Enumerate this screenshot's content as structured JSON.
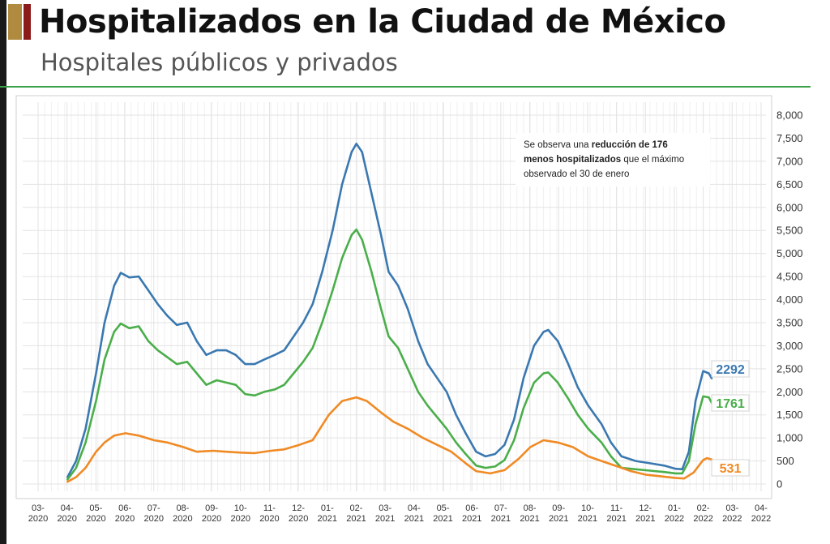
{
  "header": {
    "title": "Hospitalizados en la Ciudad de México",
    "subtitle": "Hospitales públicos y privados"
  },
  "annotation": {
    "line1_pre": "Se observa una ",
    "line1_bold": "reducción de 176",
    "line2_bold": "menos hospitalizados",
    "line2_post": " que el máximo",
    "line3": "observado el 30 de enero"
  },
  "chart_data": {
    "type": "line",
    "title": "",
    "xlabel": "",
    "ylabel": "",
    "ylim": [
      0,
      8000
    ],
    "yticks": [
      0,
      500,
      1000,
      1500,
      2000,
      2500,
      3000,
      3500,
      4000,
      4500,
      5000,
      5500,
      6000,
      6500,
      7000,
      7500,
      8000
    ],
    "ytick_labels": [
      "0",
      "500",
      "1,000",
      "1,500",
      "2,000",
      "2,500",
      "3,000",
      "3,500",
      "4,000",
      "4,500",
      "5,000",
      "5,500",
      "6,000",
      "6,500",
      "7,000",
      "7,500",
      "8,000"
    ],
    "x_axis": "date",
    "xlim": [
      "2020-03-01",
      "2022-04-01"
    ],
    "xtick_labels": [
      [
        "03-",
        "2020"
      ],
      [
        "04-",
        "2020"
      ],
      [
        "05-",
        "2020"
      ],
      [
        "06-",
        "2020"
      ],
      [
        "07-",
        "2020"
      ],
      [
        "08-",
        "2020"
      ],
      [
        "09-",
        "2020"
      ],
      [
        "10-",
        "2020"
      ],
      [
        "11-",
        "2020"
      ],
      [
        "12-",
        "2020"
      ],
      [
        "01-",
        "2021"
      ],
      [
        "02-",
        "2021"
      ],
      [
        "03-",
        "2021"
      ],
      [
        "04-",
        "2021"
      ],
      [
        "05-",
        "2021"
      ],
      [
        "06-",
        "2021"
      ],
      [
        "07-",
        "2021"
      ],
      [
        "08-",
        "2021"
      ],
      [
        "09-",
        "2021"
      ],
      [
        "10-",
        "2021"
      ],
      [
        "11-",
        "2021"
      ],
      [
        "12-",
        "2021"
      ],
      [
        "01-",
        "2022"
      ],
      [
        "02-",
        "2022"
      ],
      [
        "03-",
        "2022"
      ],
      [
        "04-",
        "2022"
      ]
    ],
    "grid": true,
    "y_axis_side": "right",
    "series": [
      {
        "color": "#3a78b0",
        "end_label": "2292",
        "points": [
          [
            "2020-04-01",
            150
          ],
          [
            "2020-04-10",
            500
          ],
          [
            "2020-04-20",
            1200
          ],
          [
            "2020-05-01",
            2400
          ],
          [
            "2020-05-10",
            3500
          ],
          [
            "2020-05-20",
            4300
          ],
          [
            "2020-05-27",
            4580
          ],
          [
            "2020-06-05",
            4480
          ],
          [
            "2020-06-15",
            4500
          ],
          [
            "2020-06-25",
            4200
          ],
          [
            "2020-07-05",
            3900
          ],
          [
            "2020-07-15",
            3650
          ],
          [
            "2020-07-25",
            3450
          ],
          [
            "2020-08-05",
            3500
          ],
          [
            "2020-08-15",
            3100
          ],
          [
            "2020-08-25",
            2800
          ],
          [
            "2020-09-05",
            2900
          ],
          [
            "2020-09-15",
            2900
          ],
          [
            "2020-09-25",
            2800
          ],
          [
            "2020-10-05",
            2600
          ],
          [
            "2020-10-15",
            2600
          ],
          [
            "2020-10-25",
            2700
          ],
          [
            "2020-11-05",
            2800
          ],
          [
            "2020-11-15",
            2900
          ],
          [
            "2020-11-25",
            3200
          ],
          [
            "2020-12-05",
            3500
          ],
          [
            "2020-12-15",
            3900
          ],
          [
            "2020-12-25",
            4600
          ],
          [
            "2021-01-05",
            5500
          ],
          [
            "2021-01-15",
            6500
          ],
          [
            "2021-01-25",
            7200
          ],
          [
            "2021-01-30",
            7380
          ],
          [
            "2021-02-05",
            7200
          ],
          [
            "2021-02-15",
            6300
          ],
          [
            "2021-02-25",
            5400
          ],
          [
            "2021-03-05",
            4600
          ],
          [
            "2021-03-15",
            4300
          ],
          [
            "2021-03-25",
            3800
          ],
          [
            "2021-04-05",
            3100
          ],
          [
            "2021-04-15",
            2600
          ],
          [
            "2021-04-25",
            2300
          ],
          [
            "2021-05-05",
            2000
          ],
          [
            "2021-05-15",
            1500
          ],
          [
            "2021-05-25",
            1100
          ],
          [
            "2021-06-05",
            700
          ],
          [
            "2021-06-15",
            600
          ],
          [
            "2021-06-25",
            650
          ],
          [
            "2021-07-05",
            850
          ],
          [
            "2021-07-15",
            1400
          ],
          [
            "2021-07-25",
            2300
          ],
          [
            "2021-08-05",
            3000
          ],
          [
            "2021-08-15",
            3300
          ],
          [
            "2021-08-20",
            3340
          ],
          [
            "2021-08-30",
            3100
          ],
          [
            "2021-09-10",
            2600
          ],
          [
            "2021-09-20",
            2100
          ],
          [
            "2021-10-01",
            1700
          ],
          [
            "2021-10-15",
            1300
          ],
          [
            "2021-10-25",
            900
          ],
          [
            "2021-11-05",
            600
          ],
          [
            "2021-11-20",
            500
          ],
          [
            "2021-12-05",
            450
          ],
          [
            "2021-12-20",
            400
          ],
          [
            "2022-01-01",
            330
          ],
          [
            "2022-01-08",
            320
          ],
          [
            "2022-01-15",
            700
          ],
          [
            "2022-01-22",
            1800
          ],
          [
            "2022-01-30",
            2450
          ],
          [
            "2022-02-05",
            2400
          ],
          [
            "2022-02-08",
            2292
          ]
        ]
      },
      {
        "color": "#4aae4a",
        "end_label": "1761",
        "points": [
          [
            "2020-04-01",
            100
          ],
          [
            "2020-04-10",
            350
          ],
          [
            "2020-04-20",
            900
          ],
          [
            "2020-05-01",
            1800
          ],
          [
            "2020-05-10",
            2700
          ],
          [
            "2020-05-20",
            3300
          ],
          [
            "2020-05-27",
            3480
          ],
          [
            "2020-06-05",
            3380
          ],
          [
            "2020-06-15",
            3420
          ],
          [
            "2020-06-25",
            3100
          ],
          [
            "2020-07-05",
            2900
          ],
          [
            "2020-07-15",
            2750
          ],
          [
            "2020-07-25",
            2600
          ],
          [
            "2020-08-05",
            2650
          ],
          [
            "2020-08-15",
            2400
          ],
          [
            "2020-08-25",
            2150
          ],
          [
            "2020-09-05",
            2250
          ],
          [
            "2020-09-15",
            2200
          ],
          [
            "2020-09-25",
            2150
          ],
          [
            "2020-10-05",
            1950
          ],
          [
            "2020-10-15",
            1920
          ],
          [
            "2020-10-25",
            2000
          ],
          [
            "2020-11-05",
            2050
          ],
          [
            "2020-11-15",
            2150
          ],
          [
            "2020-11-25",
            2400
          ],
          [
            "2020-12-05",
            2650
          ],
          [
            "2020-12-15",
            2950
          ],
          [
            "2020-12-25",
            3500
          ],
          [
            "2021-01-05",
            4200
          ],
          [
            "2021-01-15",
            4900
          ],
          [
            "2021-01-25",
            5400
          ],
          [
            "2021-01-30",
            5520
          ],
          [
            "2021-02-05",
            5300
          ],
          [
            "2021-02-15",
            4600
          ],
          [
            "2021-02-25",
            3800
          ],
          [
            "2021-03-05",
            3200
          ],
          [
            "2021-03-15",
            2950
          ],
          [
            "2021-03-25",
            2500
          ],
          [
            "2021-04-05",
            2000
          ],
          [
            "2021-04-15",
            1700
          ],
          [
            "2021-04-25",
            1450
          ],
          [
            "2021-05-05",
            1200
          ],
          [
            "2021-05-15",
            900
          ],
          [
            "2021-05-25",
            650
          ],
          [
            "2021-06-05",
            400
          ],
          [
            "2021-06-15",
            350
          ],
          [
            "2021-06-25",
            380
          ],
          [
            "2021-07-05",
            520
          ],
          [
            "2021-07-15",
            950
          ],
          [
            "2021-07-25",
            1650
          ],
          [
            "2021-08-05",
            2200
          ],
          [
            "2021-08-15",
            2400
          ],
          [
            "2021-08-20",
            2420
          ],
          [
            "2021-08-30",
            2200
          ],
          [
            "2021-09-10",
            1850
          ],
          [
            "2021-09-20",
            1500
          ],
          [
            "2021-10-01",
            1200
          ],
          [
            "2021-10-15",
            900
          ],
          [
            "2021-10-25",
            600
          ],
          [
            "2021-11-05",
            350
          ],
          [
            "2021-11-20",
            320
          ],
          [
            "2021-12-05",
            290
          ],
          [
            "2021-12-20",
            260
          ],
          [
            "2022-01-01",
            230
          ],
          [
            "2022-01-08",
            230
          ],
          [
            "2022-01-15",
            500
          ],
          [
            "2022-01-22",
            1300
          ],
          [
            "2022-01-30",
            1900
          ],
          [
            "2022-02-05",
            1880
          ],
          [
            "2022-02-08",
            1761
          ]
        ]
      },
      {
        "color": "#f08a24",
        "end_label": "531",
        "points": [
          [
            "2020-04-01",
            50
          ],
          [
            "2020-04-10",
            150
          ],
          [
            "2020-04-20",
            350
          ],
          [
            "2020-05-01",
            700
          ],
          [
            "2020-05-10",
            900
          ],
          [
            "2020-05-20",
            1050
          ],
          [
            "2020-06-01",
            1100
          ],
          [
            "2020-06-15",
            1050
          ],
          [
            "2020-07-01",
            950
          ],
          [
            "2020-07-15",
            900
          ],
          [
            "2020-08-01",
            800
          ],
          [
            "2020-08-15",
            700
          ],
          [
            "2020-09-01",
            720
          ],
          [
            "2020-09-15",
            700
          ],
          [
            "2020-10-01",
            680
          ],
          [
            "2020-10-15",
            670
          ],
          [
            "2020-11-01",
            720
          ],
          [
            "2020-11-15",
            750
          ],
          [
            "2020-12-01",
            850
          ],
          [
            "2020-12-15",
            950
          ],
          [
            "2021-01-01",
            1500
          ],
          [
            "2021-01-15",
            1800
          ],
          [
            "2021-01-30",
            1880
          ],
          [
            "2021-02-10",
            1800
          ],
          [
            "2021-02-25",
            1550
          ],
          [
            "2021-03-10",
            1350
          ],
          [
            "2021-03-25",
            1200
          ],
          [
            "2021-04-10",
            1000
          ],
          [
            "2021-04-25",
            850
          ],
          [
            "2021-05-10",
            700
          ],
          [
            "2021-05-25",
            450
          ],
          [
            "2021-06-05",
            280
          ],
          [
            "2021-06-20",
            230
          ],
          [
            "2021-07-05",
            300
          ],
          [
            "2021-07-20",
            550
          ],
          [
            "2021-08-01",
            800
          ],
          [
            "2021-08-15",
            950
          ],
          [
            "2021-08-30",
            900
          ],
          [
            "2021-09-15",
            800
          ],
          [
            "2021-10-01",
            600
          ],
          [
            "2021-10-15",
            500
          ],
          [
            "2021-11-01",
            380
          ],
          [
            "2021-11-15",
            280
          ],
          [
            "2021-12-01",
            200
          ],
          [
            "2021-12-15",
            170
          ],
          [
            "2022-01-01",
            130
          ],
          [
            "2022-01-10",
            120
          ],
          [
            "2022-01-20",
            250
          ],
          [
            "2022-01-30",
            520
          ],
          [
            "2022-02-03",
            560
          ],
          [
            "2022-02-08",
            531
          ]
        ]
      }
    ]
  }
}
